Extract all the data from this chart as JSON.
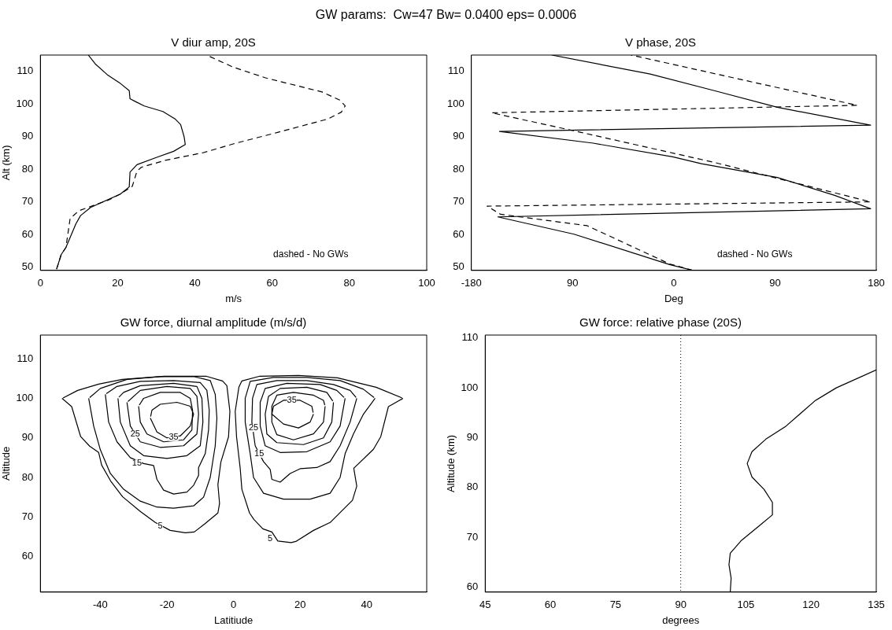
{
  "chart_data": [
    {
      "type": "other",
      "title": "GW params:  Cw=47 Bw= 0.0400 eps= 0.0006"
    },
    {
      "type": "line",
      "title": "V diur amp, 20S",
      "xlabel": "m/s",
      "ylabel": "Alt (km)",
      "xlim": [
        0,
        100
      ],
      "xticks": [
        0,
        20,
        40,
        60,
        80,
        100
      ],
      "ylim": [
        49,
        115
      ],
      "yticks": [
        50,
        60,
        70,
        80,
        90,
        100,
        110
      ],
      "marker": "none",
      "annotations": [
        "dashed - No GWs"
      ],
      "series": [
        {
          "color": "#000000",
          "line_style": "solid",
          "x": [
            4.2,
            5.4,
            6.6,
            9.2,
            10.4,
            13,
            20.7,
            23,
            23.2,
            25,
            30,
            34.5,
            37.5,
            37.2,
            36.3,
            34.8,
            31.7,
            26.9,
            24.5,
            23.2,
            23,
            20.7,
            17.3,
            14.2,
            12.4
          ],
          "values": [
            49.4,
            53.9,
            56,
            63.3,
            65.8,
            68.3,
            72.4,
            74.6,
            79.1,
            81.4,
            83.6,
            85.5,
            87.6,
            90,
            93.7,
            95.5,
            97.7,
            99.4,
            100.8,
            101.6,
            104.1,
            106.3,
            109,
            112.3,
            115
          ]
        },
        {
          "color": "#000000",
          "line_style": "dashed",
          "x": [
            4.2,
            5.4,
            6.6,
            7.7,
            10,
            17.7,
            20.7,
            23.8,
            25,
            26.1,
            32.2,
            42.2,
            50.6,
            61.4,
            74.4,
            77.9,
            78.9,
            77.5,
            72.9,
            58.3,
            49.9,
            43
          ],
          "values": [
            49.4,
            53.9,
            56,
            64.9,
            67.3,
            70.6,
            72.4,
            74.8,
            79.4,
            80.6,
            82.7,
            85.1,
            88,
            91.3,
            95.4,
            97.5,
            99.4,
            101.2,
            103.7,
            108,
            111.3,
            115
          ]
        }
      ]
    },
    {
      "type": "line",
      "title": "V phase, 20S",
      "xlabel": "Deg",
      "xlim": [
        -180,
        180
      ],
      "xticks": [
        -180,
        {
          "value": -90,
          "label": "90"
        },
        0,
        90,
        180
      ],
      "ylim": [
        49,
        115
      ],
      "yticks": [
        50,
        60,
        70,
        80,
        90,
        100,
        110
      ],
      "marker": "none",
      "annotations": [
        "dashed - No GWs"
      ],
      "series": [
        {
          "color": "#000000",
          "line_style": "solid",
          "x": [
            17,
            -3.8,
            -88.7,
            -156.5,
            175,
            143,
            92,
            24.5,
            -1,
            -71.7,
            -155,
            175,
            92,
            36,
            -21,
            -108.5
          ],
          "values": [
            49,
            50.8,
            60.1,
            65.4,
            67.9,
            72,
            77.5,
            81.7,
            83.8,
            88,
            91.6,
            93.5,
            99,
            104.1,
            109.2,
            115
          ]
        },
        {
          "color": "#000000",
          "line_style": "dashed",
          "x": [
            17,
            -3.8,
            -77,
            -154,
            -166,
            175,
            36,
            -89,
            -162,
            163,
            -38
          ],
          "values": [
            49,
            51,
            62.7,
            66.2,
            68.7,
            70,
            82.1,
            91.8,
            97.3,
            99.6,
            115
          ]
        }
      ]
    },
    {
      "type": "line",
      "title": "GW force, diurnal amplitude (m/s/d)",
      "xlabel": "Latitiude",
      "ylabel": "Altitude",
      "xlim": [
        -58,
        58
      ],
      "xticks": [
        -40,
        -20,
        0,
        20,
        40
      ],
      "ylim": [
        51,
        116
      ],
      "yticks": [
        60,
        70,
        80,
        90,
        100,
        110
      ],
      "marker": "none",
      "annotations": [
        {
          "text": "5",
          "x": -22,
          "y": 67.7
        },
        {
          "text": "5",
          "x": 11,
          "y": 64.5
        },
        {
          "text": "15",
          "x": -29,
          "y": 83.5
        },
        {
          "text": "15",
          "x": 7.7,
          "y": 86
        },
        {
          "text": "25",
          "x": -29.5,
          "y": 91
        },
        {
          "text": "25",
          "x": 6,
          "y": 92.5
        },
        {
          "text": "35",
          "x": -18,
          "y": 90.2
        },
        {
          "text": "35",
          "x": 17.5,
          "y": 99.5
        }
      ],
      "series": [
        {
          "color": "#000000",
          "x": [
            -51.5,
            -48.6,
            -45.9,
            -43.2,
            -40.5,
            -39.6,
            -36.9,
            -33.3,
            -28,
            -23.5,
            -19,
            -14.5,
            -11.8,
            -8.7,
            -4.7,
            -4.2,
            -4.7,
            -3.8,
            -1.5,
            -1.1,
            -2,
            -3.3,
            -8.3,
            -20.8,
            -33.4,
            -40.5,
            -46.8,
            -51.2
          ],
          "values": [
            100,
            97.9,
            90.3,
            87.9,
            86.3,
            83.1,
            79.1,
            75.1,
            71.4,
            68.6,
            66.6,
            66,
            66.2,
            68.2,
            71,
            73.4,
            78.2,
            83.9,
            90.3,
            96.7,
            103.2,
            104.4,
            105.6,
            105.6,
            104.8,
            103.6,
            102,
            100.1
          ]
        },
        {
          "color": "#000000",
          "x": [
            -43.5,
            -42,
            -40,
            -37,
            -33,
            -28,
            -23,
            -18,
            -12,
            -9,
            -7,
            -5.5,
            -5,
            -5.5,
            -7,
            -12,
            -22,
            -32,
            -40,
            -43.2
          ],
          "values": [
            100,
            93,
            87,
            81,
            77,
            74,
            72.5,
            72.2,
            72.8,
            75,
            80,
            88,
            95,
            101,
            104.5,
            105.5,
            105.5,
            104.8,
            102.5,
            100.2
          ]
        },
        {
          "color": "#000000",
          "x": [
            -38.5,
            -37.5,
            -35,
            -31,
            -27,
            -24,
            -23,
            -21,
            -18,
            -14,
            -12,
            -10.5,
            -10.5,
            -8.5,
            -7.5,
            -7.3,
            -8,
            -10,
            -18,
            -28,
            -35,
            -38.2
          ],
          "values": [
            101,
            94,
            89,
            85,
            83.5,
            83,
            79.5,
            76.8,
            75.8,
            76.3,
            78,
            80.5,
            82.5,
            86,
            92,
            97,
            102,
            104,
            104.5,
            104.3,
            103,
            101.2
          ]
        },
        {
          "color": "#000000",
          "x": [
            -34.7,
            -34,
            -31,
            -27,
            -20,
            -14,
            -10,
            -9.2,
            -9.5,
            -11,
            -18,
            -28,
            -33,
            -34.4
          ],
          "values": [
            100,
            94,
            88,
            85.5,
            84.8,
            85.5,
            88,
            94,
            100,
            103,
            103.8,
            103.2,
            101.5,
            100.3
          ]
        },
        {
          "color": "#000000",
          "x": [
            -32,
            -31,
            -28,
            -22,
            -15,
            -11,
            -10.5,
            -11,
            -13,
            -20,
            -28,
            -31.7
          ],
          "values": [
            99,
            93,
            89,
            87.6,
            88,
            91,
            96,
            100.5,
            102.5,
            103,
            102,
            99.2
          ]
        },
        {
          "color": "#000000",
          "x": [
            -28.5,
            -28,
            -26,
            -21,
            -15,
            -12.5,
            -12.3,
            -13,
            -16,
            -22,
            -27,
            -28.3
          ],
          "values": [
            98,
            94,
            91,
            89,
            89.5,
            92,
            97,
            100,
            101.5,
            101.5,
            100,
            98.3
          ]
        },
        {
          "color": "#000000",
          "x": [
            -25,
            -23,
            -20,
            -16,
            -13,
            -12,
            -13,
            -17,
            -22,
            -24.5,
            -24.9
          ],
          "values": [
            95,
            91.5,
            90,
            90.5,
            93,
            96,
            98,
            99,
            98.5,
            97,
            95.4
          ]
        },
        {
          "color": "#000000",
          "x": [
            50.9,
            46.5,
            44.2,
            42,
            36.1,
            37,
            35.7,
            29,
            24,
            18.7,
            17.3,
            13.3,
            11.5,
            8.8,
            6.1,
            4.8,
            2.5,
            2,
            0.9,
            0.5,
            1.6,
            2.5,
            7.9,
            19.5,
            31.2,
            42.8,
            50.6
          ],
          "values": [
            100,
            97.9,
            90.3,
            87.1,
            82.3,
            77.8,
            74.2,
            68.6,
            66.6,
            63.8,
            63.5,
            63.9,
            66.2,
            67,
            69.4,
            71,
            77,
            82.3,
            90.3,
            96.7,
            102.8,
            104.4,
            105.6,
            105.8,
            105.2,
            102.8,
            100.1
          ]
        },
        {
          "color": "#000000",
          "x": [
            42.5,
            39,
            36,
            33.5,
            32,
            29,
            23,
            15,
            9,
            6,
            5,
            3.5,
            3.5,
            5,
            12,
            22,
            32,
            39,
            42.2
          ],
          "values": [
            100,
            96,
            91,
            86,
            80,
            76,
            74.5,
            74.5,
            76,
            80,
            86,
            94,
            100,
            104.3,
            105.3,
            105.3,
            104.5,
            102.3,
            100.2
          ]
        },
        {
          "color": "#000000",
          "x": [
            37,
            35,
            32,
            29,
            25,
            20,
            17,
            14,
            11.5,
            11,
            9,
            6.5,
            5.5,
            5.7,
            7,
            13,
            22,
            30,
            35,
            36.8
          ],
          "values": [
            100,
            94,
            88,
            84,
            82.5,
            82.2,
            81,
            78.8,
            79.5,
            82,
            84,
            88,
            94,
            100,
            103.5,
            104.5,
            104.5,
            103.5,
            102,
            100.2
          ]
        },
        {
          "color": "#000000",
          "x": [
            33.5,
            32,
            29,
            22,
            14,
            9.5,
            8,
            8,
            9.5,
            16,
            26,
            31,
            33.2
          ],
          "values": [
            100,
            93,
            89,
            86.5,
            86.3,
            88,
            93,
            99,
            102.5,
            103.8,
            103.5,
            102,
            100.2
          ]
        },
        {
          "color": "#000000",
          "x": [
            30,
            29.5,
            27,
            21,
            13,
            10,
            9.5,
            10.5,
            14,
            22,
            28,
            29.8
          ],
          "values": [
            99,
            94,
            90,
            88.3,
            88.8,
            91,
            96,
            100.5,
            102.5,
            102.8,
            101.5,
            99.3
          ]
        },
        {
          "color": "#000000",
          "x": [
            27.5,
            27,
            24,
            18,
            13,
            11.5,
            11.5,
            13,
            18,
            24,
            27,
            27.4
          ],
          "values": [
            98,
            94,
            91,
            89.5,
            90.8,
            94,
            98,
            100.8,
            101.5,
            100.8,
            99.5,
            98.3
          ]
        },
        {
          "color": "#000000",
          "x": [
            24,
            23,
            19.5,
            15,
            11.5,
            12,
            15,
            20,
            23.5,
            23.9
          ],
          "values": [
            96,
            94,
            92.5,
            93.5,
            96,
            98,
            99.5,
            99.5,
            98,
            96.4
          ]
        }
      ]
    },
    {
      "type": "line",
      "title": "GW force: relative phase (20S)",
      "xlabel": "degrees",
      "ylabel": "Altitude (km)",
      "xlim": [
        45,
        135
      ],
      "xticks": [
        45,
        60,
        75,
        90,
        105,
        120,
        135
      ],
      "ylim": [
        59,
        110.6
      ],
      "yticks": [
        60,
        70,
        80,
        90,
        100,
        110
      ],
      "marker": "none",
      "ref_lines": [
        {
          "axis": "x",
          "value": 90,
          "color": "#000000",
          "line_style": "dotted"
        }
      ],
      "series": [
        {
          "color": "#000000",
          "x": [
            101.4,
            101.6,
            101.1,
            101.4,
            104,
            107.8,
            111.1,
            111.1,
            109.2,
            106.4,
            105.3,
            106.4,
            109.6,
            114.2,
            120.9,
            125.8,
            135
          ],
          "values": [
            59,
            61.8,
            64.5,
            66.8,
            69.4,
            72.1,
            74.5,
            77,
            79.6,
            82.1,
            84.8,
            87.2,
            89.7,
            92.3,
            97.4,
            100,
            103.6
          ]
        }
      ]
    }
  ]
}
